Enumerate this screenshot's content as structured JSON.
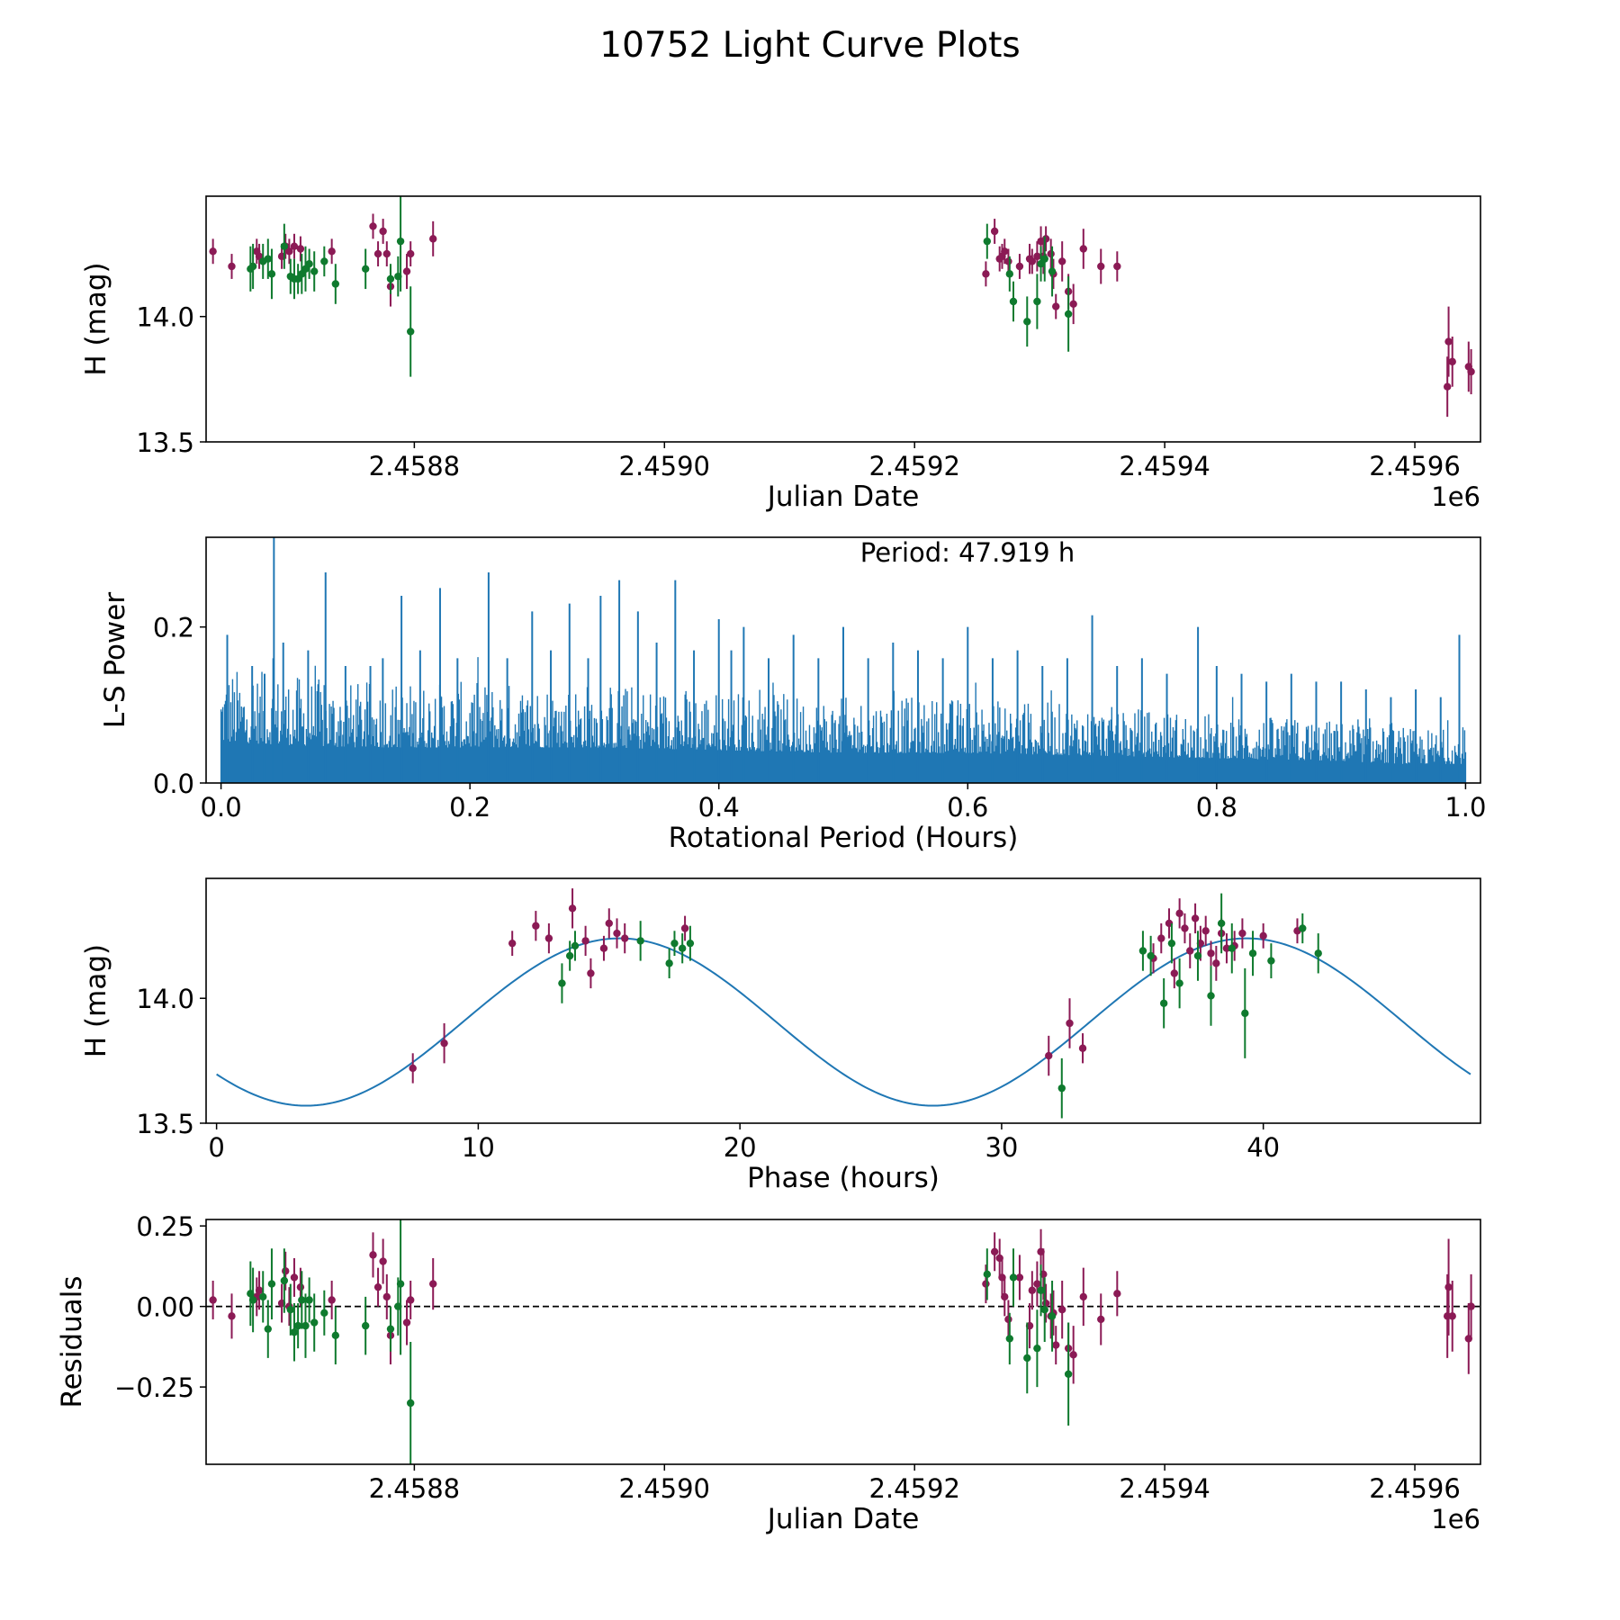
{
  "figure": {
    "title": "10752 Light Curve Plots"
  },
  "colors": {
    "band_a": "#8b1a55",
    "band_b": "#0f7a2e",
    "periodogram": "#1f77b4",
    "model": "#1f77b4",
    "zero_line": "#000000"
  },
  "chart_data": [
    {
      "id": "lightcurve",
      "type": "scatter",
      "xlabel": "Julian Date",
      "ylabel": "H (mag)",
      "offset_text": "1e6",
      "xlim": [
        2458633.5,
        2459652.5
      ],
      "ylim": [
        13.5,
        14.48
      ],
      "x_ticks": [
        2458800,
        2459000,
        2459200,
        2459400,
        2459600
      ],
      "x_tick_labels": [
        "2.4588",
        "2.4590",
        "2.4592",
        "2.4594",
        "2.4596"
      ],
      "y_ticks": [
        13.5,
        14.0
      ],
      "y_tick_labels": [
        "13.5",
        "14.0"
      ],
      "series": [
        {
          "name": "band_a",
          "color": "#8b1a55",
          "x": [
            2458639,
            2458654,
            2458674,
            2458676,
            2458694,
            2458697,
            2458700,
            2458704,
            2458709,
            2458734,
            2458767,
            2458771,
            2458775,
            2458778,
            2458781,
            2458794,
            2458797,
            2458815,
            2459257,
            2459264,
            2459268,
            2459270,
            2459272,
            2459275,
            2459284,
            2459292,
            2459294,
            2459298,
            2459301,
            2459303,
            2459305,
            2459309,
            2459311,
            2459313,
            2459318,
            2459323,
            2459327,
            2459335,
            2459349,
            2459362,
            2459626,
            2459627,
            2459630,
            2459643,
            2459645
          ],
          "y": [
            14.26,
            14.2,
            14.26,
            14.24,
            14.24,
            14.28,
            14.26,
            14.28,
            14.27,
            14.26,
            14.36,
            14.25,
            14.34,
            14.25,
            14.12,
            14.18,
            14.25,
            14.31,
            14.17,
            14.34,
            14.23,
            14.24,
            14.26,
            14.22,
            14.2,
            14.23,
            14.22,
            14.24,
            14.3,
            14.24,
            14.31,
            14.25,
            14.17,
            14.04,
            14.22,
            14.1,
            14.05,
            14.27,
            14.2,
            14.2,
            13.72,
            13.9,
            13.82,
            13.8,
            13.78
          ],
          "err": [
            0.05,
            0.05,
            0.05,
            0.05,
            0.05,
            0.05,
            0.05,
            0.05,
            0.05,
            0.05,
            0.05,
            0.05,
            0.05,
            0.05,
            0.08,
            0.07,
            0.05,
            0.07,
            0.05,
            0.05,
            0.05,
            0.05,
            0.05,
            0.05,
            0.05,
            0.06,
            0.05,
            0.06,
            0.06,
            0.07,
            0.05,
            0.06,
            0.06,
            0.05,
            0.08,
            0.07,
            0.08,
            0.08,
            0.07,
            0.06,
            0.12,
            0.14,
            0.1,
            0.1,
            0.09
          ]
        },
        {
          "name": "band_b",
          "color": "#0f7a2e",
          "x": [
            2458669,
            2458671,
            2458679,
            2458683,
            2458686,
            2458696,
            2458701,
            2458704,
            2458707,
            2458710,
            2458713,
            2458716,
            2458720,
            2458728,
            2458737,
            2458761,
            2458781,
            2458787,
            2458789,
            2458797,
            2459258,
            2459276,
            2459279,
            2459290,
            2459298,
            2459301,
            2459304,
            2459310,
            2459323
          ],
          "y": [
            14.19,
            14.2,
            14.22,
            14.23,
            14.17,
            14.28,
            14.16,
            14.15,
            14.15,
            14.17,
            14.19,
            14.21,
            14.18,
            14.22,
            14.13,
            14.19,
            14.15,
            14.16,
            14.3,
            13.94,
            14.3,
            14.17,
            14.06,
            13.98,
            14.06,
            14.21,
            14.23,
            14.18,
            14.01
          ],
          "err": [
            0.09,
            0.09,
            0.07,
            0.08,
            0.1,
            0.09,
            0.07,
            0.08,
            0.06,
            0.08,
            0.09,
            0.06,
            0.08,
            0.06,
            0.08,
            0.08,
            0.06,
            0.08,
            0.2,
            0.18,
            0.07,
            0.07,
            0.08,
            0.1,
            0.11,
            0.07,
            0.09,
            0.1,
            0.15
          ]
        }
      ]
    },
    {
      "id": "periodogram",
      "type": "line",
      "xlabel": "Rotational Period (Hours)",
      "ylabel": "L-S Power",
      "annotation": "Period: 47.919 h",
      "xlim": [
        -0.012,
        1.012
      ],
      "ylim": [
        0.0,
        0.315
      ],
      "x_ticks": [
        0.0,
        0.2,
        0.4,
        0.6,
        0.8,
        1.0
      ],
      "x_tick_labels": [
        "0.0",
        "0.2",
        "0.4",
        "0.6",
        "0.8",
        "1.0"
      ],
      "y_ticks": [
        0.0,
        0.2
      ],
      "y_tick_labels": [
        "0.0",
        "0.2"
      ],
      "envelope_x": [
        0.0,
        0.05,
        0.1,
        0.2,
        0.3,
        0.4,
        0.5,
        0.6,
        0.7,
        0.8,
        0.9,
        0.95,
        1.0
      ],
      "envelope_y": [
        0.15,
        0.14,
        0.13,
        0.13,
        0.13,
        0.12,
        0.11,
        0.11,
        0.1,
        0.09,
        0.08,
        0.07,
        0.07
      ],
      "spikes": [
        {
          "x": 0.005,
          "y": 0.19
        },
        {
          "x": 0.025,
          "y": 0.15
        },
        {
          "x": 0.035,
          "y": 0.14
        },
        {
          "x": 0.042,
          "y": 0.16
        },
        {
          "x": 0.0425,
          "y": 0.315
        },
        {
          "x": 0.05,
          "y": 0.18
        },
        {
          "x": 0.07,
          "y": 0.17
        },
        {
          "x": 0.084,
          "y": 0.27
        },
        {
          "x": 0.1,
          "y": 0.15
        },
        {
          "x": 0.12,
          "y": 0.15
        },
        {
          "x": 0.13,
          "y": 0.16
        },
        {
          "x": 0.145,
          "y": 0.24
        },
        {
          "x": 0.16,
          "y": 0.17
        },
        {
          "x": 0.176,
          "y": 0.25
        },
        {
          "x": 0.19,
          "y": 0.16
        },
        {
          "x": 0.215,
          "y": 0.27
        },
        {
          "x": 0.23,
          "y": 0.16
        },
        {
          "x": 0.25,
          "y": 0.22
        },
        {
          "x": 0.265,
          "y": 0.17
        },
        {
          "x": 0.28,
          "y": 0.23
        },
        {
          "x": 0.295,
          "y": 0.16
        },
        {
          "x": 0.305,
          "y": 0.24
        },
        {
          "x": 0.32,
          "y": 0.26
        },
        {
          "x": 0.335,
          "y": 0.22
        },
        {
          "x": 0.35,
          "y": 0.18
        },
        {
          "x": 0.365,
          "y": 0.26
        },
        {
          "x": 0.38,
          "y": 0.17
        },
        {
          "x": 0.4,
          "y": 0.21
        },
        {
          "x": 0.41,
          "y": 0.17
        },
        {
          "x": 0.42,
          "y": 0.2
        },
        {
          "x": 0.44,
          "y": 0.16
        },
        {
          "x": 0.46,
          "y": 0.19
        },
        {
          "x": 0.48,
          "y": 0.16
        },
        {
          "x": 0.5,
          "y": 0.2
        },
        {
          "x": 0.52,
          "y": 0.16
        },
        {
          "x": 0.54,
          "y": 0.18
        },
        {
          "x": 0.56,
          "y": 0.17
        },
        {
          "x": 0.58,
          "y": 0.16
        },
        {
          "x": 0.6,
          "y": 0.2
        },
        {
          "x": 0.62,
          "y": 0.16
        },
        {
          "x": 0.64,
          "y": 0.17
        },
        {
          "x": 0.66,
          "y": 0.15
        },
        {
          "x": 0.68,
          "y": 0.16
        },
        {
          "x": 0.7,
          "y": 0.215
        },
        {
          "x": 0.72,
          "y": 0.15
        },
        {
          "x": 0.74,
          "y": 0.16
        },
        {
          "x": 0.76,
          "y": 0.14
        },
        {
          "x": 0.785,
          "y": 0.2
        },
        {
          "x": 0.8,
          "y": 0.15
        },
        {
          "x": 0.82,
          "y": 0.14
        },
        {
          "x": 0.84,
          "y": 0.13
        },
        {
          "x": 0.86,
          "y": 0.14
        },
        {
          "x": 0.88,
          "y": 0.13
        },
        {
          "x": 0.9,
          "y": 0.13
        },
        {
          "x": 0.92,
          "y": 0.12
        },
        {
          "x": 0.94,
          "y": 0.11
        },
        {
          "x": 0.96,
          "y": 0.12
        },
        {
          "x": 0.98,
          "y": 0.11
        },
        {
          "x": 0.995,
          "y": 0.19
        }
      ]
    },
    {
      "id": "phased",
      "type": "scatter",
      "xlabel": "Phase (hours)",
      "ylabel": "H (mag)",
      "xlim": [
        -0.4,
        48.3
      ],
      "ylim": [
        13.5,
        14.48
      ],
      "x_ticks": [
        0,
        10,
        20,
        30,
        40
      ],
      "x_tick_labels": [
        "0",
        "10",
        "20",
        "30",
        "40"
      ],
      "y_ticks": [
        13.5,
        14.0
      ],
      "y_tick_labels": [
        "13.5",
        "14.0"
      ],
      "model": {
        "type": "sinusoid",
        "mean": 13.905,
        "amplitude": 0.335,
        "period_hours": 23.96,
        "peak_phase_hours": 15.4,
        "x_range": [
          0,
          47.92
        ]
      },
      "series": [
        {
          "name": "band_a",
          "color": "#8b1a55",
          "x": [
            7.5,
            8.7,
            11.3,
            12.2,
            12.7,
            13.6,
            14.1,
            14.3,
            14.8,
            15.0,
            15.3,
            15.6,
            17.9,
            31.8,
            32.6,
            33.1,
            35.8,
            36.1,
            36.4,
            36.6,
            36.8,
            37.0,
            37.2,
            37.4,
            37.6,
            37.8,
            38.0,
            38.2,
            38.4,
            38.6,
            38.9,
            39.2,
            40.0,
            41.3
          ],
          "y": [
            13.72,
            13.82,
            14.22,
            14.29,
            14.24,
            14.36,
            14.23,
            14.1,
            14.2,
            14.3,
            14.26,
            14.24,
            14.28,
            13.77,
            13.9,
            13.8,
            14.16,
            14.24,
            14.3,
            14.1,
            14.34,
            14.28,
            14.19,
            14.32,
            14.22,
            14.27,
            14.18,
            14.14,
            14.26,
            14.2,
            14.21,
            14.26,
            14.25,
            14.27
          ],
          "err": [
            0.06,
            0.08,
            0.05,
            0.06,
            0.06,
            0.08,
            0.06,
            0.06,
            0.05,
            0.06,
            0.06,
            0.06,
            0.05,
            0.08,
            0.1,
            0.06,
            0.06,
            0.06,
            0.06,
            0.06,
            0.06,
            0.06,
            0.07,
            0.06,
            0.07,
            0.06,
            0.05,
            0.07,
            0.06,
            0.06,
            0.06,
            0.06,
            0.05,
            0.05
          ]
        },
        {
          "name": "band_b",
          "color": "#0f7a2e",
          "x": [
            13.2,
            13.5,
            13.7,
            16.2,
            17.3,
            17.5,
            17.8,
            18.1,
            32.3,
            35.4,
            35.7,
            36.2,
            36.5,
            36.8,
            37.5,
            38.0,
            38.4,
            38.8,
            39.3,
            39.6,
            40.3,
            41.5,
            42.1
          ],
          "y": [
            14.06,
            14.17,
            14.21,
            14.23,
            14.14,
            14.22,
            14.2,
            14.22,
            13.64,
            14.19,
            14.17,
            13.98,
            14.22,
            14.06,
            14.17,
            14.01,
            14.3,
            14.2,
            13.94,
            14.18,
            14.15,
            14.28,
            14.18
          ],
          "err": [
            0.08,
            0.06,
            0.06,
            0.08,
            0.06,
            0.05,
            0.06,
            0.07,
            0.12,
            0.08,
            0.08,
            0.1,
            0.08,
            0.1,
            0.1,
            0.12,
            0.12,
            0.1,
            0.18,
            0.09,
            0.07,
            0.06,
            0.08
          ]
        }
      ]
    },
    {
      "id": "residuals",
      "type": "scatter",
      "xlabel": "Julian Date",
      "ylabel": "Residuals",
      "offset_text": "1e6",
      "reference_line": 0.0,
      "xlim": [
        2458633.5,
        2459652.5
      ],
      "ylim": [
        -0.49,
        0.27
      ],
      "x_ticks": [
        2458800,
        2459000,
        2459200,
        2459400,
        2459600
      ],
      "x_tick_labels": [
        "2.4588",
        "2.4590",
        "2.4592",
        "2.4594",
        "2.4596"
      ],
      "y_ticks": [
        -0.25,
        0.0,
        0.25
      ],
      "y_tick_labels": [
        "−0.25",
        "0.00",
        "0.25"
      ],
      "series": [
        {
          "name": "band_a",
          "color": "#8b1a55",
          "x": [
            2458639,
            2458654,
            2458674,
            2458676,
            2458694,
            2458697,
            2458700,
            2458704,
            2458709,
            2458734,
            2458767,
            2458771,
            2458775,
            2458778,
            2458781,
            2458794,
            2458797,
            2458815,
            2459257,
            2459264,
            2459268,
            2459270,
            2459272,
            2459275,
            2459284,
            2459292,
            2459294,
            2459298,
            2459301,
            2459303,
            2459305,
            2459309,
            2459311,
            2459313,
            2459318,
            2459323,
            2459327,
            2459335,
            2459349,
            2459362,
            2459626,
            2459627,
            2459630,
            2459643,
            2459645
          ],
          "y": [
            0.02,
            -0.03,
            0.03,
            0.05,
            0.01,
            0.11,
            0.0,
            0.09,
            0.06,
            0.02,
            0.16,
            0.06,
            0.14,
            0.03,
            -0.09,
            -0.05,
            0.02,
            0.07,
            0.07,
            0.17,
            0.15,
            0.09,
            0.03,
            -0.04,
            0.09,
            -0.06,
            0.05,
            0.07,
            0.17,
            0.1,
            0.01,
            -0.03,
            -0.02,
            -0.12,
            -0.01,
            -0.13,
            -0.15,
            0.03,
            -0.04,
            0.04,
            -0.03,
            0.06,
            -0.03,
            -0.1,
            0.0
          ],
          "err": [
            0.06,
            0.07,
            0.06,
            0.06,
            0.06,
            0.06,
            0.06,
            0.06,
            0.06,
            0.06,
            0.07,
            0.06,
            0.07,
            0.07,
            0.09,
            0.07,
            0.06,
            0.08,
            0.06,
            0.06,
            0.06,
            0.06,
            0.06,
            0.06,
            0.07,
            0.07,
            0.06,
            0.07,
            0.07,
            0.08,
            0.06,
            0.07,
            0.07,
            0.06,
            0.09,
            0.08,
            0.09,
            0.09,
            0.08,
            0.07,
            0.13,
            0.15,
            0.11,
            0.11,
            0.1
          ]
        },
        {
          "name": "band_b",
          "color": "#0f7a2e",
          "x": [
            2458669,
            2458671,
            2458679,
            2458683,
            2458686,
            2458696,
            2458701,
            2458704,
            2458707,
            2458710,
            2458713,
            2458716,
            2458720,
            2458728,
            2458737,
            2458761,
            2458781,
            2458787,
            2458789,
            2458797,
            2459258,
            2459276,
            2459279,
            2459290,
            2459298,
            2459301,
            2459304,
            2459310,
            2459323
          ],
          "y": [
            0.04,
            0.02,
            0.03,
            -0.07,
            0.07,
            0.08,
            -0.01,
            -0.08,
            -0.06,
            0.02,
            -0.06,
            0.02,
            -0.05,
            -0.02,
            -0.09,
            -0.06,
            -0.07,
            0.0,
            0.07,
            -0.3,
            0.1,
            -0.1,
            0.09,
            -0.16,
            -0.13,
            0.05,
            -0.01,
            -0.03,
            -0.21
          ],
          "err": [
            0.1,
            0.1,
            0.08,
            0.09,
            0.11,
            0.1,
            0.08,
            0.09,
            0.07,
            0.09,
            0.1,
            0.07,
            0.09,
            0.07,
            0.09,
            0.09,
            0.07,
            0.09,
            0.22,
            0.19,
            0.08,
            0.08,
            0.09,
            0.11,
            0.12,
            0.08,
            0.1,
            0.11,
            0.16
          ]
        }
      ]
    }
  ]
}
